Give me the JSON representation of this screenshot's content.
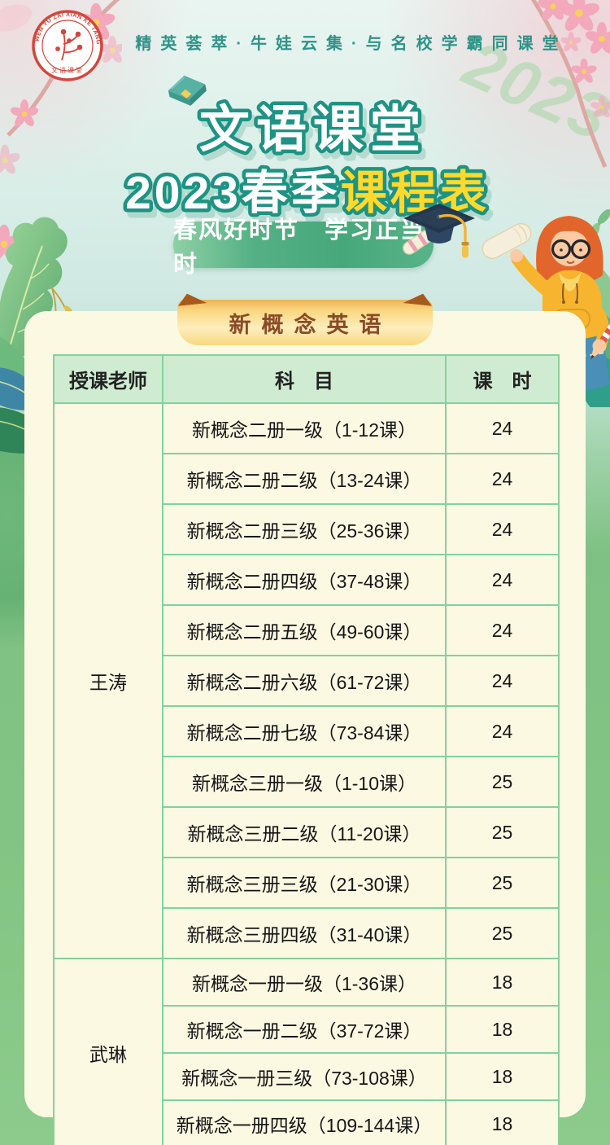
{
  "logo": {
    "arc_text": "WEN YU ZAI XIAN KE TANG",
    "bottom_text": "文语课堂"
  },
  "header": {
    "tagline": "精英荟萃·牛娃云集·与名校学霸同课堂"
  },
  "hero": {
    "watermark": "2023",
    "title_line1": "文语课堂",
    "title_line2_white": "2023春季",
    "title_line2_yellow": "课程表",
    "slogan": "春风好时节　学习正当时"
  },
  "section": {
    "title": "新概念英语"
  },
  "table": {
    "headers": [
      "授课老师",
      "科　目",
      "课　时"
    ],
    "groups": [
      {
        "teacher": "王涛",
        "rows": [
          {
            "subject": "新概念二册一级（1-12课）",
            "hours": "24"
          },
          {
            "subject": "新概念二册二级（13-24课）",
            "hours": "24"
          },
          {
            "subject": "新概念二册三级（25-36课）",
            "hours": "24"
          },
          {
            "subject": "新概念二册四级（37-48课）",
            "hours": "24"
          },
          {
            "subject": "新概念二册五级（49-60课）",
            "hours": "24"
          },
          {
            "subject": "新概念二册六级（61-72课）",
            "hours": "24"
          },
          {
            "subject": "新概念二册七级（73-84课）",
            "hours": "24"
          },
          {
            "subject": "新概念三册一级（1-10课）",
            "hours": "25"
          },
          {
            "subject": "新概念三册二级（11-20课）",
            "hours": "25"
          },
          {
            "subject": "新概念三册三级（21-30课）",
            "hours": "25"
          },
          {
            "subject": "新概念三册四级（31-40课）",
            "hours": "25"
          }
        ]
      },
      {
        "teacher": "武琳",
        "rows": [
          {
            "subject": "新概念一册一级（1-36课）",
            "hours": "18"
          },
          {
            "subject": "新概念一册二级（37-72课）",
            "hours": "18"
          },
          {
            "subject": "新概念一册三级（73-108课）",
            "hours": "18"
          },
          {
            "subject": "新概念一册四级（109-144课）",
            "hours": "18"
          }
        ]
      }
    ]
  },
  "colors": {
    "accent_teal": "#2f9388",
    "title_outline": "#1e9383",
    "title_yellow": "#ffd92b",
    "banner_green": "#46a87a",
    "ribbon_gold": "#f8d97e",
    "ribbon_text": "#8a4b28",
    "seal_red": "#d6453a",
    "table_border": "#7ed49b",
    "table_header_bg": "#cfecd2",
    "panel_cream": "#fcf9e3",
    "page_green": "#85c585"
  }
}
